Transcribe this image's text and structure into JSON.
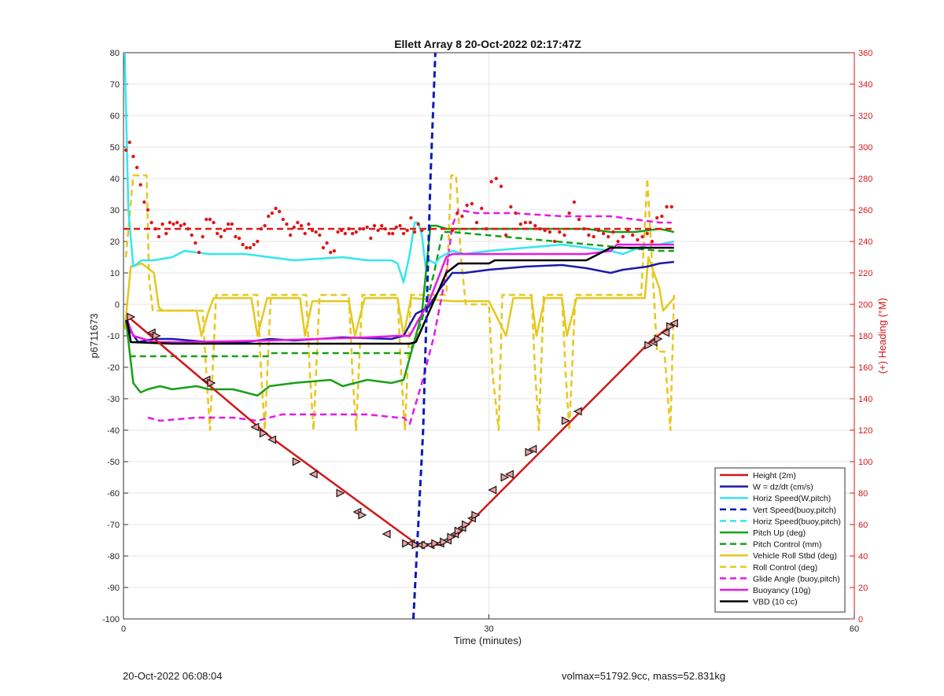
{
  "footer": {
    "timestamp": "20-Oct-2022 06:08:04",
    "summary": "volmax=51792.9cc, mass=52.831kg"
  },
  "chart_data": {
    "type": "line",
    "title": "Ellett Array 8 20-Oct-2022 02:17:47Z",
    "xlabel": "Time (minutes)",
    "ylabel": "p6711673",
    "y2label": "(+) Heading (°M)",
    "xlim": [
      0,
      60
    ],
    "ylim": [
      -100,
      80
    ],
    "y2lim": [
      0,
      360
    ],
    "xticks": [
      0,
      30,
      60
    ],
    "yticks": [
      -100,
      -90,
      -80,
      -70,
      -60,
      -50,
      -40,
      -30,
      -20,
      -10,
      0,
      10,
      20,
      30,
      40,
      50,
      60,
      70,
      80
    ],
    "y2ticks": [
      0,
      20,
      40,
      60,
      80,
      100,
      120,
      140,
      160,
      180,
      200,
      220,
      240,
      260,
      280,
      300,
      320,
      340,
      360
    ],
    "grid": true,
    "legend_position": "bottom-right",
    "colors": {
      "red": "#d01818",
      "blue": "#1a1aaa",
      "cyan": "#33e6f0",
      "navy": "#0a1ab8",
      "green": "#18a018",
      "yellow": "#e6c81e",
      "magenta": "#e619e6",
      "black": "#000000",
      "dot": "#e01818"
    },
    "series": [
      {
        "name": "Height (2m)",
        "color": "red",
        "dash": "solid",
        "x": [
          0.4,
          12.0,
          24.0,
          26.0,
          27.5,
          43.2,
          45.2
        ],
        "y": [
          -4,
          -42,
          -76,
          -76.5,
          -73,
          -12,
          -6
        ]
      },
      {
        "name": "W = dz/dt (cm/s)",
        "color": "blue",
        "dash": "solid",
        "x": [
          0.2,
          0.5,
          1.2,
          2.5,
          4,
          7,
          10,
          12,
          14,
          18,
          22,
          23,
          24,
          25,
          26,
          27,
          28,
          30,
          33,
          36,
          38,
          40,
          41,
          43,
          44,
          45.2
        ],
        "y": [
          -5,
          -8,
          -12,
          -11,
          -11,
          -12,
          -12,
          -11,
          -11.5,
          -10.5,
          -11,
          -10,
          -3,
          -1,
          5,
          10,
          10,
          11,
          12,
          12.5,
          11.5,
          10,
          11,
          12,
          13,
          13.5
        ]
      },
      {
        "name": "Horiz Speed(W,pitch)",
        "color": "cyan",
        "dash": "solid",
        "x": [
          0.1,
          0.4,
          0.8,
          1.5,
          2.5,
          4,
          5,
          7,
          10,
          12,
          14,
          18,
          20,
          22,
          22.5,
          23,
          23.5,
          23.9,
          24.2,
          24.5,
          24.8,
          25.1,
          25.6,
          26,
          27,
          28,
          30,
          33,
          36,
          38,
          40,
          41,
          43,
          44,
          45.2
        ],
        "y": [
          80,
          30,
          12,
          14,
          14,
          15,
          17,
          16,
          16,
          15,
          14,
          15,
          14,
          14,
          13,
          7,
          16,
          26,
          26,
          22,
          12,
          14,
          13,
          15,
          17,
          16,
          17,
          18,
          19,
          18,
          17,
          16,
          19,
          19,
          20
        ]
      },
      {
        "name": "Vert Speed(buoy,pitch)",
        "color": "navy",
        "dash": "dashed",
        "x": [
          23.8,
          24.6,
          25.2,
          25.6
        ],
        "y": [
          -100,
          -40,
          40,
          80
        ]
      },
      {
        "name": "Horiz Speed(buoy,pitch)",
        "color": "cyan",
        "dash": "dashed",
        "x": [],
        "y": []
      },
      {
        "name": "Pitch Up (deg)",
        "color": "green",
        "dash": "solid",
        "x": [
          0.2,
          0.8,
          1.4,
          2,
          3,
          4,
          6,
          7,
          9,
          11,
          12,
          14,
          17,
          18,
          20,
          22,
          23,
          24.5,
          25.2,
          25.7,
          26.5,
          28,
          30,
          33,
          36,
          38,
          40,
          42,
          44,
          45.2
        ],
        "y": [
          -5,
          -25,
          -28,
          -27,
          -26,
          -27,
          -26,
          -27,
          -27,
          -29,
          -26,
          -25,
          -24,
          -26,
          -24,
          -25,
          -24,
          -3,
          25,
          25,
          24,
          24,
          24,
          24,
          24,
          24,
          23,
          23,
          24,
          23
        ]
      },
      {
        "name": "Pitch Control (mm)",
        "color": "green",
        "dash": "dashed",
        "x": [
          0.5,
          12,
          12.2,
          23.5,
          24.5,
          25.5,
          26.2,
          27,
          44,
          45.2
        ],
        "y": [
          -16.5,
          -16.5,
          -15.5,
          -15.5,
          -5,
          10,
          23,
          23,
          17,
          17
        ]
      },
      {
        "name": "Vehicle Roll Stbd (deg)",
        "color": "yellow",
        "dash": "solid",
        "x": [
          0.1,
          0.6,
          1.5,
          2.5,
          2.9,
          3.2,
          6,
          6.4,
          7,
          7.4,
          10.5,
          11,
          11.8,
          14.5,
          14.9,
          15.5,
          18.5,
          19,
          19.8,
          22.5,
          23,
          23.6,
          27,
          30,
          30.4,
          31.4,
          32,
          33.5,
          33.9,
          34.6,
          36,
          36.4,
          37.2,
          42.8,
          43.1,
          44,
          44.3,
          45.2
        ],
        "y": [
          -8,
          12,
          13,
          10,
          -1,
          -2,
          -2,
          -10,
          -2,
          2,
          2,
          -10,
          2,
          2,
          -10,
          1,
          1,
          -10,
          2,
          2,
          -10,
          2,
          1,
          1,
          -2,
          -10,
          2,
          2,
          -10,
          2,
          2,
          -10,
          2,
          2,
          15,
          5,
          -2,
          2
        ]
      },
      {
        "name": "Roll Control (deg)",
        "color": "yellow",
        "dash": "dashed",
        "x": [
          0.2,
          0.8,
          1.9,
          2.1,
          2.4,
          3.5,
          6.5,
          6.8,
          7.1,
          7.6,
          11,
          11.3,
          11.6,
          12.1,
          15,
          15.3,
          15.6,
          16.1,
          18.5,
          18.8,
          19.1,
          19.6,
          22.5,
          22.8,
          23.1,
          23.6,
          26.5,
          26.9,
          27.3,
          27.7,
          28.1,
          30,
          30.3,
          30.8,
          31.1,
          33.5,
          33.8,
          34.1,
          34.5,
          36,
          36.3,
          36.6,
          37.1,
          42.5,
          43,
          43.3,
          43.8,
          44.4,
          44.6,
          44.9,
          45.2
        ],
        "y": [
          15,
          41,
          41,
          8,
          -2,
          -2,
          -2,
          -22,
          -40,
          3,
          3,
          -22,
          -40,
          3,
          3,
          -22,
          -40,
          3,
          3,
          -22,
          -40,
          3,
          3,
          -22,
          -40,
          3,
          3,
          41,
          41,
          15,
          0,
          0,
          -22,
          -40,
          3,
          3,
          -22,
          -40,
          3,
          3,
          -22,
          -40,
          3,
          3,
          40,
          20,
          -15,
          -15,
          -25,
          -40,
          3
        ]
      },
      {
        "name": "Glide Angle (buoy,pitch)",
        "color": "magenta",
        "dash": "dashed",
        "x": [
          2,
          3,
          6,
          9,
          11,
          13,
          16,
          20,
          22.5,
          23,
          23.5,
          24.5,
          25.5,
          26.5,
          27,
          27.5,
          29,
          32,
          36,
          40,
          42,
          44,
          45
        ],
        "y": [
          -36,
          -37,
          -36,
          -36,
          -37,
          -35,
          -35,
          -35,
          -36,
          -36,
          -38,
          -25,
          -10,
          10,
          25,
          30,
          29,
          29,
          28,
          28,
          27,
          26,
          26
        ]
      },
      {
        "name": "Buoyancy (10g)",
        "color": "magenta",
        "dash": "solid",
        "x": [
          0.3,
          0.8,
          2.5,
          5,
          12,
          20,
          22.5,
          23.5,
          24.2,
          25,
          26,
          26.5,
          27,
          30,
          35,
          38,
          40,
          40.5,
          45.2
        ],
        "y": [
          -5,
          -10,
          -12,
          -12,
          -11.5,
          -10.5,
          -10,
          -10,
          -5,
          0,
          10,
          15,
          16,
          16,
          16,
          16,
          17,
          19,
          19
        ]
      },
      {
        "name": "VBD (10 cc)",
        "color": "black",
        "dash": "solid",
        "x": [
          0.3,
          0.6,
          4,
          23.5,
          24,
          26.5,
          27.5,
          30,
          30.5,
          38,
          39,
          40,
          45.2
        ],
        "y": [
          -5,
          -12,
          -12.5,
          -12.5,
          -12,
          10,
          13,
          13,
          14,
          14,
          16,
          18,
          18
        ]
      },
      {
        "name": "Heading",
        "color": "dot",
        "dash": "dashed",
        "axis": "right",
        "x": [
          0,
          45
        ],
        "y": [
          248,
          248
        ]
      }
    ],
    "heading_points": {
      "x": [
        0.2,
        0.5,
        0.8,
        1.1,
        1.4,
        1.7,
        2.0,
        2.3,
        2.6,
        2.9,
        3.2,
        3.5,
        3.8,
        4.1,
        4.4,
        4.7,
        5.0,
        5.3,
        5.6,
        5.9,
        6.2,
        6.5,
        6.8,
        7.1,
        7.4,
        7.7,
        8.0,
        8.3,
        8.6,
        8.9,
        9.2,
        9.5,
        9.8,
        10.1,
        10.4,
        10.7,
        11.0,
        11.3,
        11.6,
        11.9,
        12.2,
        12.5,
        12.8,
        13.1,
        13.4,
        13.7,
        14.0,
        14.3,
        14.6,
        14.9,
        15.2,
        15.5,
        15.8,
        16.1,
        16.4,
        16.7,
        17.0,
        17.3,
        17.6,
        17.9,
        18.2,
        18.5,
        18.8,
        19.1,
        19.4,
        19.7,
        20.0,
        20.3,
        20.6,
        20.9,
        21.2,
        21.5,
        21.8,
        22.1,
        22.4,
        22.7,
        23.0,
        23.3,
        23.6,
        23.9,
        24.2,
        24.5,
        27,
        27.4,
        27.8,
        28.2,
        28.6,
        29.0,
        29.4,
        29.8,
        30.2,
        30.6,
        31.0,
        31.4,
        31.8,
        32.2,
        32.6,
        33.0,
        33.4,
        33.8,
        34.2,
        34.6,
        35.0,
        35.4,
        35.8,
        36.2,
        36.6,
        37.0,
        37.4,
        37.8,
        38.2,
        38.6,
        39.0,
        39.4,
        39.8,
        40.2,
        40.6,
        41.0,
        41.4,
        41.8,
        42.2,
        42.6,
        43.0,
        43.4,
        43.8,
        44.2,
        44.6,
        45.0
      ],
      "y": [
        298,
        303,
        294,
        287,
        276,
        265,
        260,
        252,
        248,
        243,
        251,
        245,
        252,
        251,
        252,
        250,
        251,
        248,
        244,
        239,
        233,
        243,
        254,
        254,
        252,
        245,
        243,
        247,
        251,
        251,
        243,
        242,
        238,
        236,
        236,
        238,
        240,
        248,
        250,
        256,
        258,
        261,
        259,
        254,
        251,
        244,
        249,
        252,
        250,
        245,
        251,
        247,
        246,
        244,
        236,
        239,
        233,
        234,
        246,
        247,
        245,
        248,
        245,
        246,
        248,
        248,
        249,
        242,
        250,
        247,
        250,
        248,
        245,
        245,
        249,
        250,
        245,
        247,
        255,
        246,
        251,
        247,
        247,
        258,
        256,
        263,
        264,
        252,
        261,
        248,
        278,
        280,
        275,
        244,
        262,
        258,
        251,
        252,
        252,
        250,
        248,
        247,
        246,
        240,
        246,
        244,
        258,
        265,
        254,
        248,
        244,
        243,
        247,
        245,
        243,
        246,
        240,
        243,
        247,
        244,
        241,
        243,
        245,
        240,
        255,
        256,
        262,
        262
      ]
    },
    "height_markers": {
      "x": [
        0.6,
        2.3,
        2.7,
        6.8,
        7.2,
        10.8,
        11.5,
        12.2,
        14.2,
        15.6,
        17.8,
        19.2,
        19.6,
        21.6,
        23.2,
        23.6,
        24.0,
        24.4,
        24.8,
        25.2,
        25.6,
        26.0,
        26.3,
        26.6,
        26.9,
        27.2,
        27.5,
        27.8,
        28.1,
        28.6,
        28.9,
        30.3,
        31.3,
        31.7,
        33.3,
        33.6,
        36.3,
        37.3,
        43.1,
        43.5,
        43.9,
        44.5,
        44.9,
        45.2
      ],
      "y": [
        -4,
        -9,
        -10,
        -24,
        -25,
        -39,
        -41,
        -43,
        -50,
        -54,
        -60,
        -66,
        -67,
        -73,
        -76,
        -76,
        -76.5,
        -76.5,
        -76.5,
        -76.5,
        -76,
        -76,
        -75.5,
        -75,
        -74,
        -73,
        -72,
        -71,
        -70,
        -68,
        -67,
        -59,
        -55,
        -54,
        -47,
        -46,
        -37,
        -34,
        -13,
        -12,
        -11,
        -9,
        -7,
        -6
      ]
    }
  }
}
